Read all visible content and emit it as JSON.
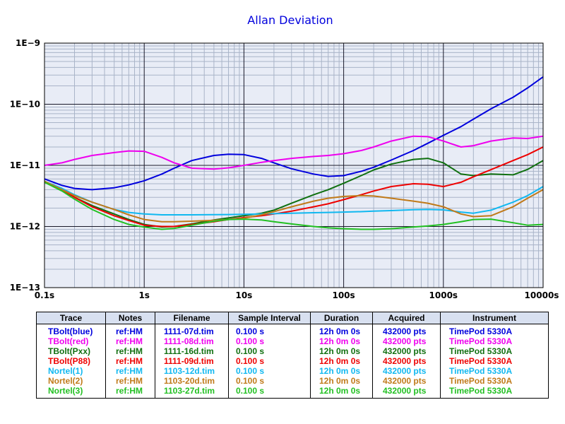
{
  "chart_data": {
    "type": "line",
    "title": "Allan Deviation",
    "xlabel": "",
    "ylabel": "",
    "xscale": "log",
    "yscale": "log",
    "xlim": [
      0.1,
      10000
    ],
    "ylim": [
      1e-13,
      1e-09
    ],
    "grid": true,
    "x_tick_labels": [
      "0.1s",
      "1s",
      "10s",
      "100s",
      "1000s",
      "10000s"
    ],
    "y_tick_labels": [
      "1E−9",
      "1E−10",
      "1E−11",
      "1E−12",
      "1E−13"
    ],
    "series": [
      {
        "name": "TBolt(blue)",
        "color": "#0000dd",
        "x": [
          0.1,
          0.15,
          0.2,
          0.3,
          0.5,
          0.7,
          1,
          1.5,
          2,
          3,
          5,
          7,
          10,
          15,
          20,
          30,
          50,
          70,
          100,
          150,
          200,
          300,
          500,
          700,
          1000,
          1500,
          2000,
          3000,
          5000,
          7000,
          10000
        ],
        "y": [
          6e-12,
          4.7e-12,
          4.2e-12,
          4e-12,
          4.3e-12,
          4.8e-12,
          5.6e-12,
          7.2e-12,
          9e-12,
          1.2e-11,
          1.45e-11,
          1.52e-11,
          1.5e-11,
          1.3e-11,
          1.1e-11,
          8.8e-12,
          7.2e-12,
          6.6e-12,
          6.8e-12,
          8e-12,
          9.3e-12,
          1.22e-11,
          1.75e-11,
          2.3e-11,
          3.1e-11,
          4.3e-11,
          5.7e-11,
          8.4e-11,
          1.3e-10,
          1.85e-10,
          2.8e-10
        ]
      },
      {
        "name": "TBolt(red)",
        "color": "#ee00ee",
        "x": [
          0.1,
          0.15,
          0.2,
          0.3,
          0.5,
          0.7,
          1,
          1.5,
          2,
          3,
          5,
          7,
          10,
          15,
          20,
          30,
          50,
          70,
          100,
          150,
          200,
          300,
          500,
          700,
          1000,
          1500,
          2000,
          3000,
          5000,
          7000,
          10000
        ],
        "y": [
          1e-11,
          1.1e-11,
          1.25e-11,
          1.45e-11,
          1.62e-11,
          1.72e-11,
          1.7e-11,
          1.35e-11,
          1.1e-11,
          9e-12,
          8.7e-12,
          9.1e-12,
          1e-11,
          1.12e-11,
          1.2e-11,
          1.3e-11,
          1.4e-11,
          1.45e-11,
          1.55e-11,
          1.75e-11,
          2e-11,
          2.5e-11,
          3e-11,
          2.95e-11,
          2.5e-11,
          2e-11,
          2.1e-11,
          2.5e-11,
          2.8e-11,
          2.75e-11,
          3e-11
        ]
      },
      {
        "name": "TBolt(Pxx)",
        "color": "#107010",
        "x": [
          0.1,
          0.15,
          0.2,
          0.3,
          0.5,
          0.7,
          1,
          1.5,
          2,
          3,
          5,
          7,
          10,
          15,
          20,
          30,
          50,
          70,
          100,
          150,
          200,
          300,
          500,
          700,
          1000,
          1500,
          2000,
          3000,
          5000,
          7000,
          10000
        ],
        "y": [
          5.5e-12,
          4e-12,
          3e-12,
          2.2e-12,
          1.6e-12,
          1.3e-12,
          1.08e-12,
          9.8e-13,
          1e-12,
          1.1e-12,
          1.28e-12,
          1.38e-12,
          1.5e-12,
          1.65e-12,
          1.85e-12,
          2.4e-12,
          3.3e-12,
          4e-12,
          5.1e-12,
          6.8e-12,
          8.4e-12,
          1.05e-11,
          1.25e-11,
          1.3e-11,
          1.1e-11,
          7.2e-12,
          6.8e-12,
          7.2e-12,
          7e-12,
          8.6e-12,
          1.2e-11
        ]
      },
      {
        "name": "TBolt(P88)",
        "color": "#ee0000",
        "x": [
          0.1,
          0.15,
          0.2,
          0.3,
          0.5,
          0.7,
          1,
          1.5,
          2,
          3,
          5,
          7,
          10,
          15,
          20,
          30,
          50,
          70,
          100,
          150,
          200,
          300,
          500,
          700,
          1000,
          1500,
          2000,
          3000,
          5000,
          7000,
          10000
        ],
        "y": [
          5.5e-12,
          4e-12,
          3e-12,
          2.1e-12,
          1.5e-12,
          1.25e-12,
          1.05e-12,
          1e-12,
          1e-12,
          1.08e-12,
          1.2e-12,
          1.3e-12,
          1.4e-12,
          1.5e-12,
          1.6e-12,
          1.78e-12,
          2.1e-12,
          2.35e-12,
          2.75e-12,
          3.3e-12,
          3.8e-12,
          4.5e-12,
          5e-12,
          4.9e-12,
          4.5e-12,
          5.3e-12,
          6.5e-12,
          8.5e-12,
          1.2e-11,
          1.5e-11,
          2e-11
        ]
      },
      {
        "name": "Nortel(1)",
        "color": "#10b8f0",
        "x": [
          0.1,
          0.15,
          0.2,
          0.3,
          0.5,
          0.7,
          1,
          1.5,
          2,
          3,
          5,
          7,
          10,
          15,
          20,
          30,
          50,
          70,
          100,
          150,
          200,
          300,
          500,
          700,
          1000,
          1500,
          2000,
          3000,
          5000,
          7000,
          10000
        ],
        "y": [
          5.5e-12,
          4.2e-12,
          3.3e-12,
          2.5e-12,
          1.9e-12,
          1.7e-12,
          1.6e-12,
          1.55e-12,
          1.55e-12,
          1.55e-12,
          1.56e-12,
          1.57e-12,
          1.58e-12,
          1.6e-12,
          1.62e-12,
          1.65e-12,
          1.68e-12,
          1.7e-12,
          1.72e-12,
          1.75e-12,
          1.78e-12,
          1.82e-12,
          1.88e-12,
          1.9e-12,
          1.87e-12,
          1.72e-12,
          1.65e-12,
          1.85e-12,
          2.5e-12,
          3.2e-12,
          4.5e-12
        ]
      },
      {
        "name": "Nortel(2)",
        "color": "#c07a1a",
        "x": [
          0.1,
          0.15,
          0.2,
          0.3,
          0.5,
          0.7,
          1,
          1.5,
          2,
          3,
          5,
          7,
          10,
          15,
          20,
          30,
          50,
          70,
          100,
          150,
          200,
          300,
          500,
          700,
          1000,
          1500,
          2000,
          3000,
          5000,
          7000,
          10000
        ],
        "y": [
          5.5e-12,
          4e-12,
          3.2e-12,
          2.5e-12,
          1.9e-12,
          1.55e-12,
          1.3e-12,
          1.2e-12,
          1.2e-12,
          1.22e-12,
          1.26e-12,
          1.3e-12,
          1.36e-12,
          1.55e-12,
          1.75e-12,
          2.1e-12,
          2.6e-12,
          2.9e-12,
          3.1e-12,
          3.2e-12,
          3.15e-12,
          2.9e-12,
          2.6e-12,
          2.4e-12,
          2.1e-12,
          1.6e-12,
          1.45e-12,
          1.5e-12,
          2.1e-12,
          2.9e-12,
          4e-12
        ]
      },
      {
        "name": "Nortel(3)",
        "color": "#22c022",
        "x": [
          0.1,
          0.15,
          0.2,
          0.3,
          0.5,
          0.7,
          1,
          1.5,
          2,
          3,
          5,
          7,
          10,
          15,
          20,
          30,
          50,
          70,
          100,
          150,
          200,
          300,
          500,
          700,
          1000,
          1500,
          2000,
          3000,
          5000,
          7000,
          10000
        ],
        "y": [
          5.3e-12,
          3.8e-12,
          2.8e-12,
          1.9e-12,
          1.3e-12,
          1.08e-12,
          9.8e-13,
          9e-13,
          9.3e-13,
          1.05e-12,
          1.22e-12,
          1.3e-12,
          1.32e-12,
          1.28e-12,
          1.2e-12,
          1.1e-12,
          1e-12,
          9.5e-13,
          9.2e-13,
          9e-13,
          9e-13,
          9.2e-13,
          9.8e-13,
          1.02e-12,
          1.08e-12,
          1.2e-12,
          1.3e-12,
          1.32e-12,
          1.15e-12,
          1.05e-12,
          1.08e-12
        ]
      }
    ]
  },
  "legend_table": {
    "headers": {
      "trace": "Trace",
      "notes": "Notes",
      "filename": "Filename",
      "interval": "Sample Interval",
      "duration": "Duration",
      "acquired": "Acquired",
      "instrument": "Instrument"
    },
    "rows": [
      {
        "trace": "TBolt(blue)",
        "notes": "ref:HM",
        "filename": "1111-07d.tim",
        "interval": "0.100 s",
        "duration": "12h 0m 0s",
        "acquired": "432000 pts",
        "instrument": "TimePod 5330A",
        "color": "#0000dd"
      },
      {
        "trace": "TBolt(red)",
        "notes": "ref:HM",
        "filename": "1111-08d.tim",
        "interval": "0.100 s",
        "duration": "12h 0m 0s",
        "acquired": "432000 pts",
        "instrument": "TimePod 5330A",
        "color": "#ee00ee"
      },
      {
        "trace": "TBolt(Pxx)",
        "notes": "ref:HM",
        "filename": "1111-16d.tim",
        "interval": "0.100 s",
        "duration": "12h 0m 0s",
        "acquired": "432000 pts",
        "instrument": "TimePod 5330A",
        "color": "#107010"
      },
      {
        "trace": "TBolt(P88)",
        "notes": "ref:HM",
        "filename": "1111-09d.tim",
        "interval": "0.100 s",
        "duration": "12h 0m 0s",
        "acquired": "432000 pts",
        "instrument": "TimePod 5330A",
        "color": "#ee0000"
      },
      {
        "trace": "Nortel(1)",
        "notes": "ref:HM",
        "filename": "1103-12d.tim",
        "interval": "0.100 s",
        "duration": "12h 0m 0s",
        "acquired": "432000 pts",
        "instrument": "TimePod 5330A",
        "color": "#10b8f0"
      },
      {
        "trace": "Nortel(2)",
        "notes": "ref:HM",
        "filename": "1103-20d.tim",
        "interval": "0.100 s",
        "duration": "12h 0m 0s",
        "acquired": "432000 pts",
        "instrument": "TimePod 5330A",
        "color": "#c07a1a"
      },
      {
        "trace": "Nortel(3)",
        "notes": "ref:HM",
        "filename": "1103-27d.tim",
        "interval": "0.100 s",
        "duration": "12h 0m 0s",
        "acquired": "432000 pts",
        "instrument": "TimePod 5330A",
        "color": "#22c022"
      }
    ]
  }
}
